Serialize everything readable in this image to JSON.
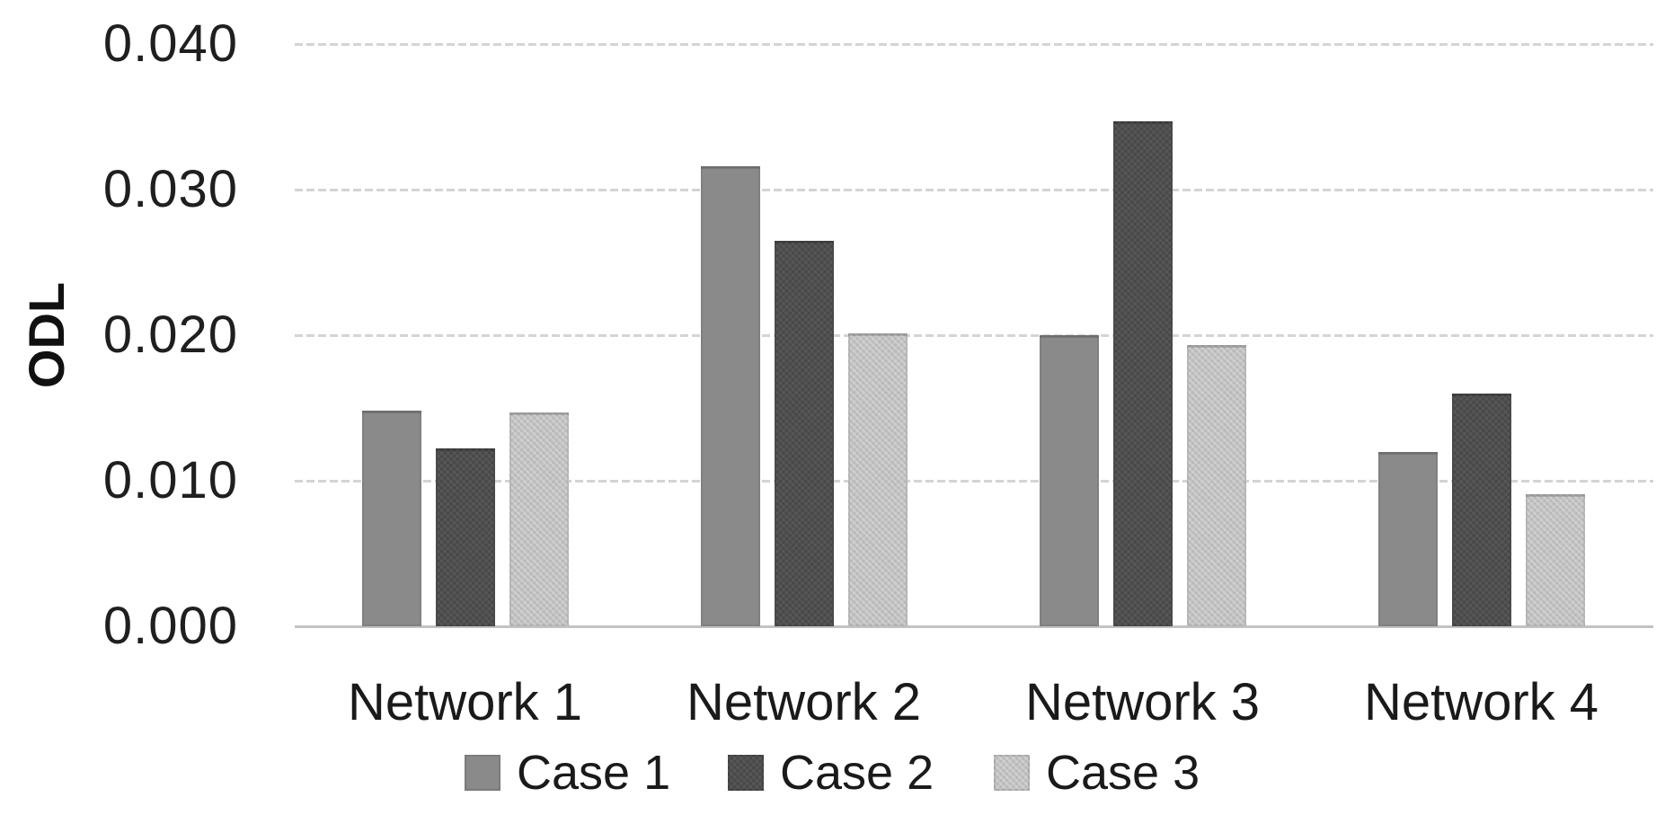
{
  "chart_data": {
    "type": "bar",
    "title": "",
    "xlabel": "",
    "ylabel": "ODL",
    "categories": [
      "Network 1",
      "Network 2",
      "Network 3",
      "Network 4"
    ],
    "series": [
      {
        "name": "Case 1",
        "color": "#8a8a8a",
        "texture": "flat",
        "values": [
          0.0148,
          0.0316,
          0.02,
          0.012
        ]
      },
      {
        "name": "Case 2",
        "color": "#4f4f4f",
        "texture": "dark",
        "values": [
          0.0122,
          0.0265,
          0.0347,
          0.016
        ]
      },
      {
        "name": "Case 3",
        "color": "#c2c2c2",
        "texture": "light",
        "values": [
          0.0147,
          0.0201,
          0.0193,
          0.0091
        ]
      }
    ],
    "ylim": [
      0.0,
      0.04
    ],
    "ytick_step": 0.01,
    "ytick_labels": [
      "0.040",
      "0.030",
      "0.020",
      "0.010",
      "0.000"
    ],
    "grid": "horizontal-dashed",
    "legend_position": "bottom-center"
  },
  "colors": {
    "background": "#ffffff",
    "gridline": "#d4d4d4",
    "axis_line": "#c3c3c3",
    "text": "#1a1a1a"
  }
}
